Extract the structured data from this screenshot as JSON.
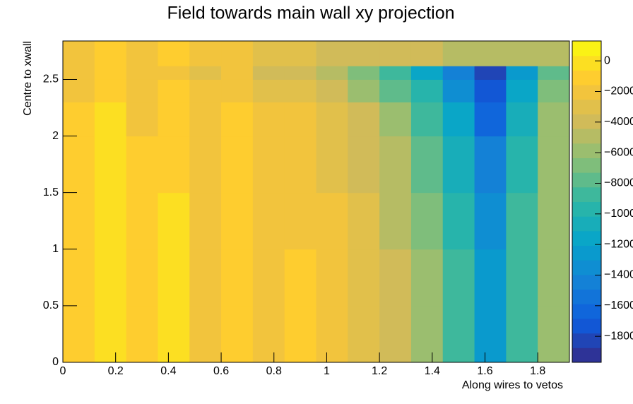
{
  "chart_data": {
    "type": "heatmap",
    "title": "Field towards main wall xy projection",
    "x_label": "Along wires to vetos",
    "y_label": "Centre to xwall",
    "x_bins": [
      0,
      0.12,
      0.24,
      0.36,
      0.48,
      0.6,
      0.72,
      0.84,
      0.96,
      1.08,
      1.2,
      1.32,
      1.44,
      1.56,
      1.68,
      1.8,
      1.92
    ],
    "y_bins": [
      0,
      0.5,
      1,
      1.5,
      2,
      2.3,
      2.5,
      2.62,
      2.84
    ],
    "values": [
      [
        -1500,
        -500,
        -1500,
        -600,
        -1600,
        -800,
        -1800,
        -1400,
        -2200,
        -3000,
        -4200,
        -6000,
        -8500,
        -12500,
        -9000,
        -5500
      ],
      [
        -1500,
        -500,
        -1500,
        -600,
        -1600,
        -800,
        -1800,
        -1500,
        -2300,
        -3100,
        -4400,
        -6300,
        -9000,
        -13000,
        -9000,
        -5500
      ],
      [
        -1500,
        -500,
        -1500,
        -600,
        -1600,
        -800,
        -1900,
        -1600,
        -2400,
        -3300,
        -4700,
        -6800,
        -9800,
        -13800,
        -9000,
        -5500
      ],
      [
        -1500,
        -500,
        -1500,
        -700,
        -1700,
        -900,
        -2000,
        -1800,
        -2700,
        -3700,
        -5300,
        -7600,
        -10800,
        -14800,
        -9500,
        -5800
      ],
      [
        -1500,
        -600,
        -1600,
        -800,
        -1800,
        -1100,
        -2300,
        -2200,
        -3200,
        -4400,
        -6200,
        -8800,
        -12000,
        -16000,
        -10500,
        -6200
      ],
      [
        -1600,
        -800,
        -1800,
        -1100,
        -2200,
        -1600,
        -2900,
        -2900,
        -4000,
        -5400,
        -7400,
        -10000,
        -13500,
        -17500,
        -11500,
        -6800
      ],
      [
        -1700,
        -1000,
        -2200,
        -1600,
        -2900,
        -2400,
        -3700,
        -3800,
        -5000,
        -6500,
        -8600,
        -11500,
        -14500,
        -18500,
        -13000,
        -7500
      ],
      [
        -1600,
        -900,
        -1900,
        -1300,
        -2400,
        -1900,
        -3000,
        -3000,
        -3600,
        -3800,
        -4000,
        -4200,
        -4500,
        -4800,
        -5000,
        -5200
      ]
    ],
    "xlim": [
      0,
      1.92
    ],
    "ylim": [
      0,
      2.84
    ],
    "zlim": [
      -19700,
      1300
    ],
    "xticks": [
      0,
      0.2,
      0.4,
      0.6,
      0.8,
      1,
      1.2,
      1.4,
      1.6,
      1.8
    ],
    "yticks": [
      0,
      0.5,
      1,
      1.5,
      2,
      2.5
    ],
    "zticks": [
      0,
      {
        "value": -2000,
        "label": "−2000"
      },
      {
        "value": -4000,
        "label": "−4000"
      },
      {
        "value": -6000,
        "label": "−6000"
      },
      {
        "value": -8000,
        "label": "−8000"
      },
      {
        "value": -10000,
        "label": "−10000"
      },
      {
        "value": -12000,
        "label": "−12000"
      },
      {
        "value": -14000,
        "label": "−14000"
      },
      {
        "value": -16000,
        "label": "−16000"
      },
      {
        "value": -18000,
        "label": "−18000"
      }
    ],
    "colorscale": [
      "#352a87",
      "#0f5cdd",
      "#1481d6",
      "#06a4ca",
      "#2eb7a4",
      "#87bf77",
      "#d1bb59",
      "#fec832",
      "#f9fb0e"
    ],
    "color_levels": 22
  }
}
